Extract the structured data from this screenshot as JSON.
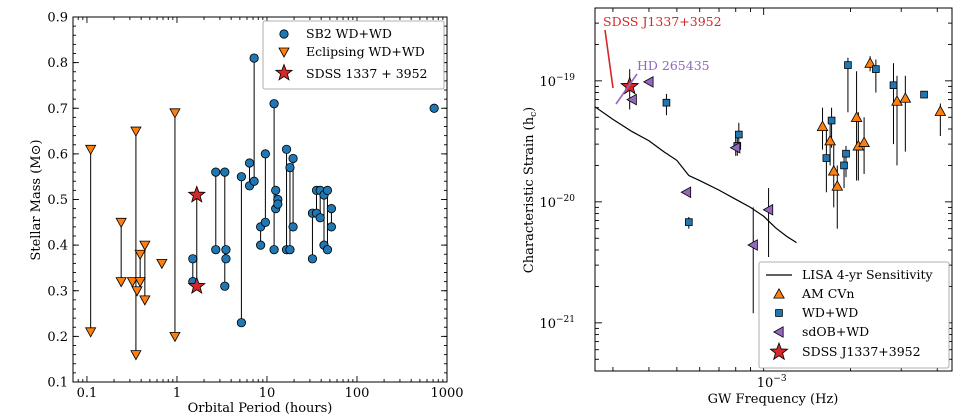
{
  "chart_data": [
    {
      "type": "scatter",
      "xlabel": "Orbital Period (hours)",
      "ylabel": "Stellar Mass (M⊙)",
      "xscale": "log",
      "xlim": [
        0.07,
        1000
      ],
      "ylim": [
        0.1,
        0.9
      ],
      "x_ticks": [
        {
          "value": 0.1,
          "label": "0.1"
        },
        {
          "value": 1,
          "label": "1"
        },
        {
          "value": 10,
          "label": "10"
        },
        {
          "value": 100,
          "label": "100"
        },
        {
          "value": 1000,
          "label": "1000"
        }
      ],
      "y_ticks": [
        {
          "value": 0.1,
          "label": "0.1"
        },
        {
          "value": 0.2,
          "label": "0.2"
        },
        {
          "value": 0.3,
          "label": "0.3"
        },
        {
          "value": 0.4,
          "label": "0.4"
        },
        {
          "value": 0.5,
          "label": "0.5"
        },
        {
          "value": 0.6,
          "label": "0.6"
        },
        {
          "value": 0.7,
          "label": "0.7"
        },
        {
          "value": 0.8,
          "label": "0.8"
        },
        {
          "value": 0.9,
          "label": "0.9"
        }
      ],
      "legend_position": "top-right",
      "series": [
        {
          "name": "SB2 WD+WD",
          "marker": "circle",
          "color": "#1f77b4",
          "pairs": [
            {
              "x": 1.5,
              "m": [
                0.37,
                0.32
              ]
            },
            {
              "x": 2.7,
              "m": [
                0.56,
                0.39
              ]
            },
            {
              "x": 3.4,
              "m": [
                0.56,
                0.31
              ]
            },
            {
              "x": 3.5,
              "m": [
                0.39,
                0.37
              ]
            },
            {
              "x": 5.2,
              "m": [
                0.55,
                0.23
              ]
            },
            {
              "x": 6.4,
              "m": [
                0.58,
                0.53
              ]
            },
            {
              "x": 7.2,
              "m": [
                0.81,
                0.54
              ]
            },
            {
              "x": 8.5,
              "m": [
                0.44,
                0.4
              ]
            },
            {
              "x": 9.6,
              "m": [
                0.6,
                0.45
              ]
            },
            {
              "x": 12.0,
              "m": [
                0.71,
                0.39
              ]
            },
            {
              "x": 12.5,
              "m": [
                0.52,
                0.48
              ]
            },
            {
              "x": 13.2,
              "m": [
                0.5,
                0.49
              ]
            },
            {
              "x": 16.5,
              "m": [
                0.61,
                0.39
              ]
            },
            {
              "x": 18.0,
              "m": [
                0.57,
                0.39
              ]
            },
            {
              "x": 19.5,
              "m": [
                0.59,
                0.44
              ]
            },
            {
              "x": 32.0,
              "m": [
                0.47,
                0.37
              ]
            },
            {
              "x": 35.5,
              "m": [
                0.52,
                0.47
              ]
            },
            {
              "x": 39.0,
              "m": [
                0.52,
                0.46
              ]
            },
            {
              "x": 43.0,
              "m": [
                0.51,
                0.4
              ]
            },
            {
              "x": 47.0,
              "m": [
                0.52,
                0.39
              ]
            },
            {
              "x": 52.0,
              "m": [
                0.48,
                0.44
              ]
            },
            {
              "x": 720.0,
              "m": [
                0.7,
                0.7
              ]
            }
          ]
        },
        {
          "name": "Eclipsing WD+WD",
          "marker": "triangle-down",
          "color": "#ff7f0e",
          "pairs": [
            {
              "x": 0.11,
              "m": [
                0.61,
                0.21
              ]
            },
            {
              "x": 0.24,
              "m": [
                0.45,
                0.32
              ]
            },
            {
              "x": 0.32,
              "m": [
                0.32,
                0.32
              ]
            },
            {
              "x": 0.35,
              "m": [
                0.65,
                0.16
              ]
            },
            {
              "x": 0.36,
              "m": [
                0.3,
                0.3
              ]
            },
            {
              "x": 0.39,
              "m": [
                0.38,
                0.32
              ]
            },
            {
              "x": 0.44,
              "m": [
                0.4,
                0.28
              ]
            },
            {
              "x": 0.68,
              "m": [
                0.36,
                0.36
              ]
            },
            {
              "x": 0.95,
              "m": [
                0.69,
                0.2
              ]
            }
          ]
        },
        {
          "name": "SDSS 1337 + 3952",
          "marker": "star",
          "color": "#d62728",
          "pairs": [
            {
              "x": 1.66,
              "m": [
                0.51,
                0.31
              ]
            }
          ]
        }
      ]
    },
    {
      "type": "scatter",
      "xlabel": "GW Frequency (Hz)",
      "ylabel": "Characteristic Strain (hc)",
      "ylabel_main": "Characteristic Strain (h",
      "ylabel_sub": "c",
      "ylabel_close": ")",
      "xscale": "log",
      "yscale": "log",
      "xlim": [
        0.00026,
        0.0045
      ],
      "ylim": [
        4e-22,
        4e-19
      ],
      "x_ticks": [
        {
          "value": 0.001,
          "label_base": "10",
          "label_exp": "−3"
        }
      ],
      "y_ticks": [
        {
          "value": 1e-21,
          "label_base": "10",
          "label_exp": "−21"
        },
        {
          "value": 1e-20,
          "label_base": "10",
          "label_exp": "−20"
        },
        {
          "value": 1e-19,
          "label_base": "10",
          "label_exp": "−19"
        }
      ],
      "legend_position": "lower-right",
      "annotations": [
        {
          "text": "SDSS J1337+3952",
          "color": "#d62728",
          "x": 0.0003,
          "y": 3e-19
        },
        {
          "text": "HD 265435",
          "color": "#9467bd",
          "x": 0.000395,
          "y": 1.65e-19
        }
      ],
      "lisa_curve": {
        "name": "LISA 4-yr Sensitivity",
        "color": "#000000",
        "points": [
          [
            0.00026,
            6.1e-20
          ],
          [
            0.0003,
            4.8e-20
          ],
          [
            0.00035,
            3.8e-20
          ],
          [
            0.0004,
            3.2e-20
          ],
          [
            0.00045,
            2.6e-20
          ],
          [
            0.0005,
            2.2e-20
          ],
          [
            0.00055,
            1.65e-20
          ],
          [
            0.0006,
            1.5e-20
          ],
          [
            0.0007,
            1.25e-20
          ],
          [
            0.0008,
            1.05e-20
          ],
          [
            0.0009,
            9e-21
          ],
          [
            0.001,
            7.6e-21
          ],
          [
            0.0011,
            6.1e-21
          ],
          [
            0.0012,
            5.2e-21
          ],
          [
            0.0013,
            4.6e-21
          ]
        ]
      },
      "series": [
        {
          "name": "AM CVn",
          "marker": "triangle-up",
          "color": "#ff7f0e",
          "points": [
            {
              "x": 0.00234,
              "y": 1.4e-19,
              "err": [
                1.2e-19,
                1.6e-19
              ]
            },
            {
              "x": 0.0029,
              "y": 6.8e-20,
              "err": [
                2e-20,
                1.1e-19
              ]
            },
            {
              "x": 0.0031,
              "y": 7.2e-20,
              "err": [
                2.6e-20,
                1.1e-19
              ]
            },
            {
              "x": 0.0041,
              "y": 5.6e-20,
              "err": [
                3.5e-20,
                6.5e-20
              ]
            },
            {
              "x": 0.0016,
              "y": 4.2e-20,
              "err": [
                2.7e-20,
                6e-20
              ]
            },
            {
              "x": 0.0017,
              "y": 3.2e-20,
              "err": [
                2e-20,
                4.8e-20
              ]
            },
            {
              "x": 0.00175,
              "y": 1.8e-20,
              "err": [
                9e-21,
                3e-20
              ]
            },
            {
              "x": 0.0018,
              "y": 1.35e-20,
              "err": [
                6e-21,
                2e-20
              ]
            },
            {
              "x": 0.0021,
              "y": 5e-20,
              "err": [
                1.5e-20,
                1.2e-19
              ]
            },
            {
              "x": 0.00213,
              "y": 2.9e-20,
              "err": [
                1.5e-20,
                5.5e-20
              ]
            },
            {
              "x": 0.00223,
              "y": 3.1e-20,
              "err": [
                1.7e-20,
                5e-20
              ]
            }
          ]
        },
        {
          "name": "WD+WD",
          "marker": "square",
          "color": "#1f77b4",
          "points": [
            {
              "x": 0.00046,
              "y": 6.6e-20,
              "err": [
                5.2e-20,
                7.8e-20
              ]
            },
            {
              "x": 0.00055,
              "y": 6.8e-21,
              "err": [
                6e-21,
                7.5e-21
              ]
            },
            {
              "x": 0.00082,
              "y": 3.6e-20,
              "err": [
                2.6e-20,
                4.5e-20
              ]
            },
            {
              "x": 0.00081,
              "y": 2.9e-20,
              "err": [
                2.4e-20,
                3.5e-20
              ]
            },
            {
              "x": 0.00165,
              "y": 2.3e-20,
              "err": [
                1.2e-20,
                4e-20
              ]
            },
            {
              "x": 0.00172,
              "y": 4.7e-20,
              "err": [
                2.8e-20,
                6e-20
              ]
            },
            {
              "x": 0.0019,
              "y": 2e-20,
              "err": [
                1.3e-20,
                2.6e-20
              ]
            },
            {
              "x": 0.00193,
              "y": 2.5e-20,
              "err": [
                1.6e-20,
                2.9e-20
              ]
            },
            {
              "x": 0.00196,
              "y": 1.35e-19,
              "err": [
                5.5e-20,
                1.55e-19
              ]
            },
            {
              "x": 0.00245,
              "y": 1.25e-19,
              "err": [
                8e-20,
                1.5e-19
              ]
            },
            {
              "x": 0.00282,
              "y": 9.2e-20,
              "err": [
                3e-20,
                1.4e-19
              ]
            },
            {
              "x": 0.0036,
              "y": 7.7e-20,
              "err": [
                7.2e-20,
                8e-20
              ]
            }
          ]
        },
        {
          "name": "sdOB+WD",
          "marker": "triangle-left",
          "color": "#9467bd",
          "points": [
            {
              "x": 0.00035,
              "y": 7e-20,
              "err": null
            },
            {
              "x": 0.0004,
              "y": 9.8e-20,
              "err": null
            },
            {
              "x": 0.00054,
              "y": 1.2e-20,
              "err": null
            },
            {
              "x": 0.0008,
              "y": 2.8e-20,
              "err": [
                2.4e-20,
                3.4e-20
              ]
            },
            {
              "x": 0.00092,
              "y": 4.4e-21,
              "err": [
                1.2e-21,
                9e-21
              ]
            },
            {
              "x": 0.00104,
              "y": 8.6e-21,
              "err": [
                3.5e-21,
                1.3e-20
              ]
            }
          ]
        },
        {
          "name": "SDSS J1337+3952",
          "marker": "star",
          "color": "#d62728",
          "points": [
            {
              "x": 0.000343,
              "y": 9e-20,
              "err": [
                5.8e-20,
                1.25e-19
              ]
            }
          ]
        }
      ]
    }
  ]
}
